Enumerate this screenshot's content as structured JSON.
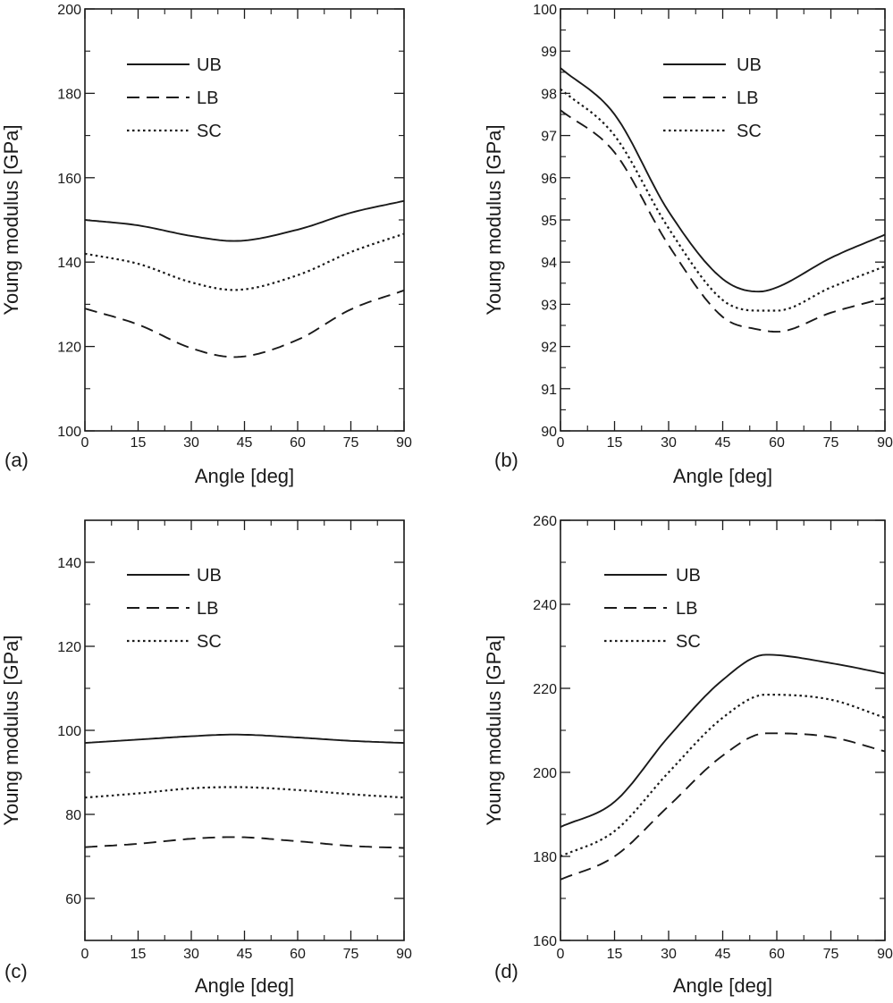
{
  "chart_data": [
    {
      "panel_label": "(a)",
      "type": "line",
      "xlabel": "Angle [deg]",
      "ylabel": "Young modulus [GPa]",
      "xlim": [
        0,
        90
      ],
      "ylim": [
        100,
        200
      ],
      "xticks": [
        0,
        15,
        30,
        45,
        60,
        75,
        90
      ],
      "yticks": [
        100,
        120,
        140,
        160,
        180,
        200
      ],
      "legend": "top-left",
      "grid": false,
      "x": [
        0,
        15,
        30,
        42,
        60,
        75,
        90
      ],
      "series": [
        {
          "name": "UB",
          "style": "solid",
          "values": [
            150,
            148.7,
            146.2,
            145,
            147.7,
            151.7,
            154.5
          ]
        },
        {
          "name": "LB",
          "style": "dashed",
          "values": [
            129,
            125.2,
            119.6,
            117.5,
            121.6,
            128.8,
            133.3
          ]
        },
        {
          "name": "SC",
          "style": "dotted",
          "values": [
            142,
            139.6,
            135.2,
            133.4,
            136.9,
            142.4,
            146.7
          ]
        }
      ]
    },
    {
      "panel_label": "(b)",
      "type": "line",
      "xlabel": "Angle [deg]",
      "ylabel": "Young modulus [GPa]",
      "xlim": [
        0,
        90
      ],
      "ylim": [
        90,
        100
      ],
      "xticks": [
        0,
        15,
        30,
        45,
        60,
        75,
        90
      ],
      "yticks": [
        90,
        91,
        92,
        93,
        94,
        95,
        96,
        97,
        98,
        99,
        100
      ],
      "legend": "top-right",
      "grid": false,
      "x": [
        0,
        15,
        30,
        45,
        55,
        60,
        75,
        90
      ],
      "series": [
        {
          "name": "UB",
          "style": "solid",
          "values": [
            98.6,
            97.5,
            95.2,
            93.6,
            93.3,
            93.4,
            94.1,
            94.65
          ]
        },
        {
          "name": "LB",
          "style": "dashed",
          "values": [
            97.6,
            96.6,
            94.4,
            92.7,
            92.4,
            92.35,
            92.8,
            93.15
          ]
        },
        {
          "name": "SC",
          "style": "dotted",
          "values": [
            98.1,
            97.0,
            94.8,
            93.1,
            92.85,
            92.85,
            93.4,
            93.9
          ]
        }
      ]
    },
    {
      "panel_label": "(c)",
      "type": "line",
      "xlabel": "Angle [deg]",
      "ylabel": "Young modulus [GPa]",
      "xlim": [
        0,
        90
      ],
      "ylim": [
        50,
        150
      ],
      "xticks": [
        0,
        15,
        30,
        45,
        60,
        75,
        90
      ],
      "yticks": [
        60,
        80,
        100,
        120,
        140
      ],
      "legend": "top-left",
      "grid": false,
      "x": [
        0,
        15,
        30,
        42,
        60,
        75,
        90
      ],
      "series": [
        {
          "name": "UB",
          "style": "solid",
          "values": [
            97,
            97.8,
            98.6,
            99,
            98.3,
            97.5,
            97
          ]
        },
        {
          "name": "LB",
          "style": "dashed",
          "values": [
            72.2,
            73,
            74.2,
            74.6,
            73.6,
            72.5,
            72
          ]
        },
        {
          "name": "SC",
          "style": "dotted",
          "values": [
            84,
            85,
            86.2,
            86.5,
            85.8,
            84.8,
            84
          ]
        }
      ]
    },
    {
      "panel_label": "(d)",
      "type": "line",
      "xlabel": "Angle [deg]",
      "ylabel": "Young modulus [GPa]",
      "xlim": [
        0,
        90
      ],
      "ylim": [
        160,
        260
      ],
      "xticks": [
        0,
        15,
        30,
        45,
        60,
        75,
        90
      ],
      "yticks": [
        160,
        180,
        200,
        220,
        240,
        260
      ],
      "legend": "top-left",
      "grid": false,
      "x": [
        0,
        15,
        30,
        45,
        57,
        75,
        90
      ],
      "series": [
        {
          "name": "UB",
          "style": "solid",
          "values": [
            187,
            193,
            208.5,
            222,
            228,
            226,
            223.5
          ]
        },
        {
          "name": "LB",
          "style": "dashed",
          "values": [
            174.5,
            180,
            192,
            204,
            209.3,
            208.4,
            205
          ]
        },
        {
          "name": "SC",
          "style": "dotted",
          "values": [
            180,
            186,
            200,
            213,
            218.5,
            217.3,
            213
          ]
        }
      ]
    }
  ]
}
